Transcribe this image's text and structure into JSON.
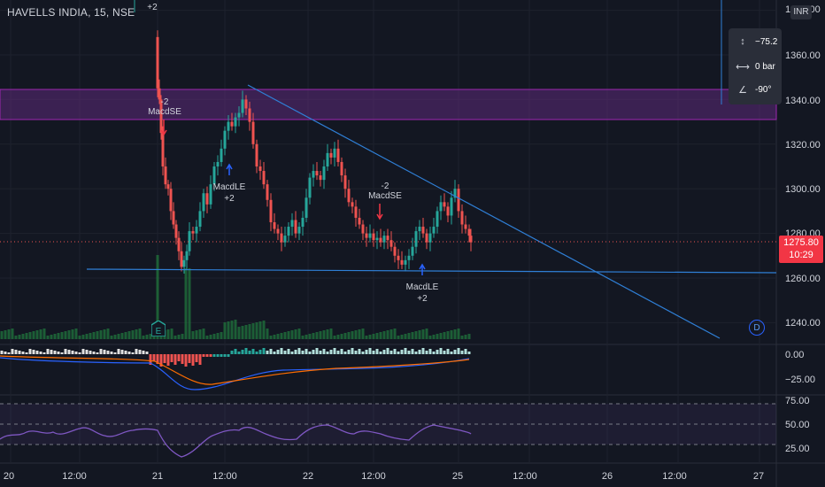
{
  "symbol": {
    "title": "HAVELLS INDIA, 15, NSE"
  },
  "currency": {
    "label": "INR"
  },
  "top_annotation": "+2",
  "price_axis": {
    "ticks": [
      "1380.00",
      "1360.00",
      "1340.00",
      "1320.00",
      "1300.00",
      "1280.00",
      "1260.00",
      "1240.00"
    ],
    "current_price": "1275.80",
    "countdown": "10:29"
  },
  "macd_axis": {
    "ticks": [
      "0.00",
      "−25.00"
    ]
  },
  "rsi_axis": {
    "ticks": [
      "75.00",
      "50.00",
      "25.00"
    ]
  },
  "time_axis": {
    "ticks": [
      "20",
      "12:00",
      "21",
      "12:00",
      "22",
      "12:00",
      "25",
      "12:00",
      "26",
      "12:00",
      "27"
    ]
  },
  "measure_tool": {
    "price_change": "−75.2",
    "bars": "0 bar",
    "angle": "-90°"
  },
  "signals": [
    {
      "name": "MacdSE",
      "qty": "-2"
    },
    {
      "name": "MacdLE",
      "qty": "+2"
    },
    {
      "name": "MacdSE",
      "qty": "-2"
    },
    {
      "name": "MacdLE",
      "qty": "+2"
    }
  ],
  "markers": {
    "earnings": "E",
    "dividend": "D"
  },
  "colors": {
    "background": "#131722",
    "up": "#26a69a",
    "down": "#ef5350",
    "zone": "#5d2a7a",
    "trendline": "#2f7fd6",
    "rsi": "#7e57c2",
    "macd": "#2962ff",
    "signal": "#ff6d00"
  }
}
